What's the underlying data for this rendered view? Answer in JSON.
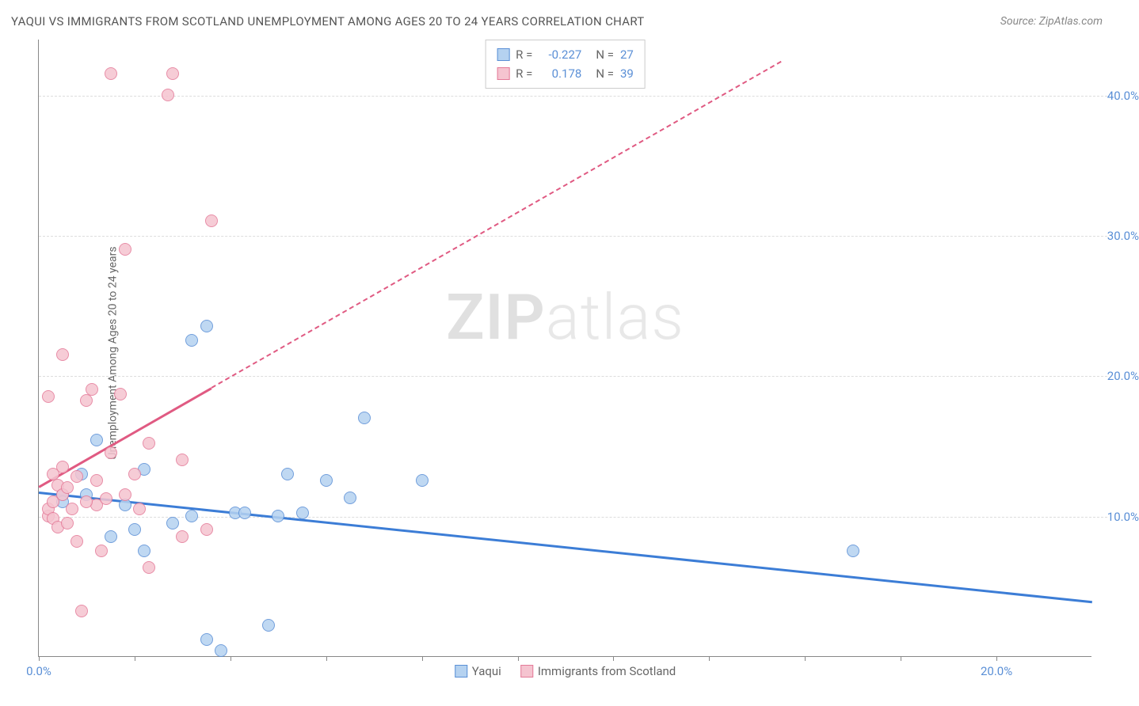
{
  "title": "YAQUI VS IMMIGRANTS FROM SCOTLAND UNEMPLOYMENT AMONG AGES 20 TO 24 YEARS CORRELATION CHART",
  "source": "Source: ZipAtlas.com",
  "y_axis_label": "Unemployment Among Ages 20 to 24 years",
  "watermark_bold": "ZIP",
  "watermark_light": "atlas",
  "chart": {
    "type": "scatter",
    "xlim": [
      0,
      22
    ],
    "ylim": [
      0,
      44
    ],
    "y_ticks": [
      10,
      20,
      30,
      40
    ],
    "y_tick_labels": [
      "10.0%",
      "20.0%",
      "30.0%",
      "40.0%"
    ],
    "x_ticks": [
      0,
      2,
      4,
      6,
      8,
      10,
      12,
      14,
      16,
      18,
      20
    ],
    "x_tick_labels_shown": {
      "0": "0.0%",
      "20": "20.0%"
    },
    "grid_color": "#dddddd",
    "background": "#ffffff",
    "series": [
      {
        "name": "Yaqui",
        "color_fill": "#b5d2f0",
        "color_stroke": "#5a8fd6",
        "r_label": "R =",
        "r_value": "-0.227",
        "n_label": "N =",
        "n_value": "27",
        "trend": {
          "x1": 0,
          "y1": 11.8,
          "x2": 22,
          "y2": 4.0,
          "color": "#3c7dd6",
          "solid_until_x": 22
        },
        "points": [
          [
            0.5,
            11.5
          ],
          [
            0.5,
            11
          ],
          [
            0.9,
            13
          ],
          [
            1,
            11.5
          ],
          [
            1.2,
            15.4
          ],
          [
            1.8,
            10.8
          ],
          [
            2,
            9
          ],
          [
            1.5,
            8.5
          ],
          [
            2.2,
            13.3
          ],
          [
            2.8,
            9.5
          ],
          [
            2.2,
            7.5
          ],
          [
            3.2,
            22.5
          ],
          [
            3.5,
            23.5
          ],
          [
            3.5,
            1.2
          ],
          [
            3.8,
            0.4
          ],
          [
            4.1,
            10.2
          ],
          [
            4.3,
            10.2
          ],
          [
            5,
            10
          ],
          [
            5.2,
            13
          ],
          [
            5.5,
            10.2
          ],
          [
            4.8,
            2.2
          ],
          [
            6.5,
            11.3
          ],
          [
            6.8,
            17
          ],
          [
            8,
            12.5
          ],
          [
            6,
            12.5
          ],
          [
            17,
            7.5
          ],
          [
            3.2,
            10
          ]
        ]
      },
      {
        "name": "Immigrants from Scotland",
        "color_fill": "#f5c4d0",
        "color_stroke": "#e47a98",
        "r_label": "R =",
        "r_value": "0.178",
        "n_label": "N =",
        "n_value": "39",
        "trend": {
          "x1": 0,
          "y1": 12.2,
          "x2": 15.5,
          "y2": 42.5,
          "color": "#e05a82",
          "solid_until_x": 3.6
        },
        "points": [
          [
            0.2,
            10
          ],
          [
            0.2,
            10.5
          ],
          [
            0.3,
            9.8
          ],
          [
            0.3,
            11
          ],
          [
            0.4,
            12.2
          ],
          [
            0.4,
            9.2
          ],
          [
            0.5,
            13.5
          ],
          [
            0.5,
            11.5
          ],
          [
            0.6,
            12
          ],
          [
            0.7,
            10.5
          ],
          [
            0.8,
            8.2
          ],
          [
            0.9,
            3.2
          ],
          [
            0.2,
            18.5
          ],
          [
            0.5,
            21.5
          ],
          [
            1,
            18.2
          ],
          [
            1.1,
            19
          ],
          [
            1.2,
            12.5
          ],
          [
            1.2,
            10.8
          ],
          [
            1.3,
            7.5
          ],
          [
            1.5,
            41.5
          ],
          [
            1.8,
            29
          ],
          [
            1.5,
            14.5
          ],
          [
            1.7,
            18.7
          ],
          [
            2,
            13
          ],
          [
            2.1,
            10.5
          ],
          [
            2.3,
            15.2
          ],
          [
            2.3,
            6.3
          ],
          [
            2.7,
            40
          ],
          [
            2.8,
            41.5
          ],
          [
            3,
            14
          ],
          [
            3,
            8.5
          ],
          [
            3.5,
            9
          ],
          [
            3.6,
            31
          ],
          [
            1,
            11
          ],
          [
            0.6,
            9.5
          ],
          [
            0.8,
            12.8
          ],
          [
            1.4,
            11.2
          ],
          [
            1.8,
            11.5
          ],
          [
            0.3,
            13
          ]
        ]
      }
    ]
  },
  "legend_bottom": [
    {
      "label": "Yaqui",
      "fill": "#b5d2f0",
      "stroke": "#5a8fd6"
    },
    {
      "label": "Immigrants from Scotland",
      "fill": "#f5c4d0",
      "stroke": "#e47a98"
    }
  ]
}
